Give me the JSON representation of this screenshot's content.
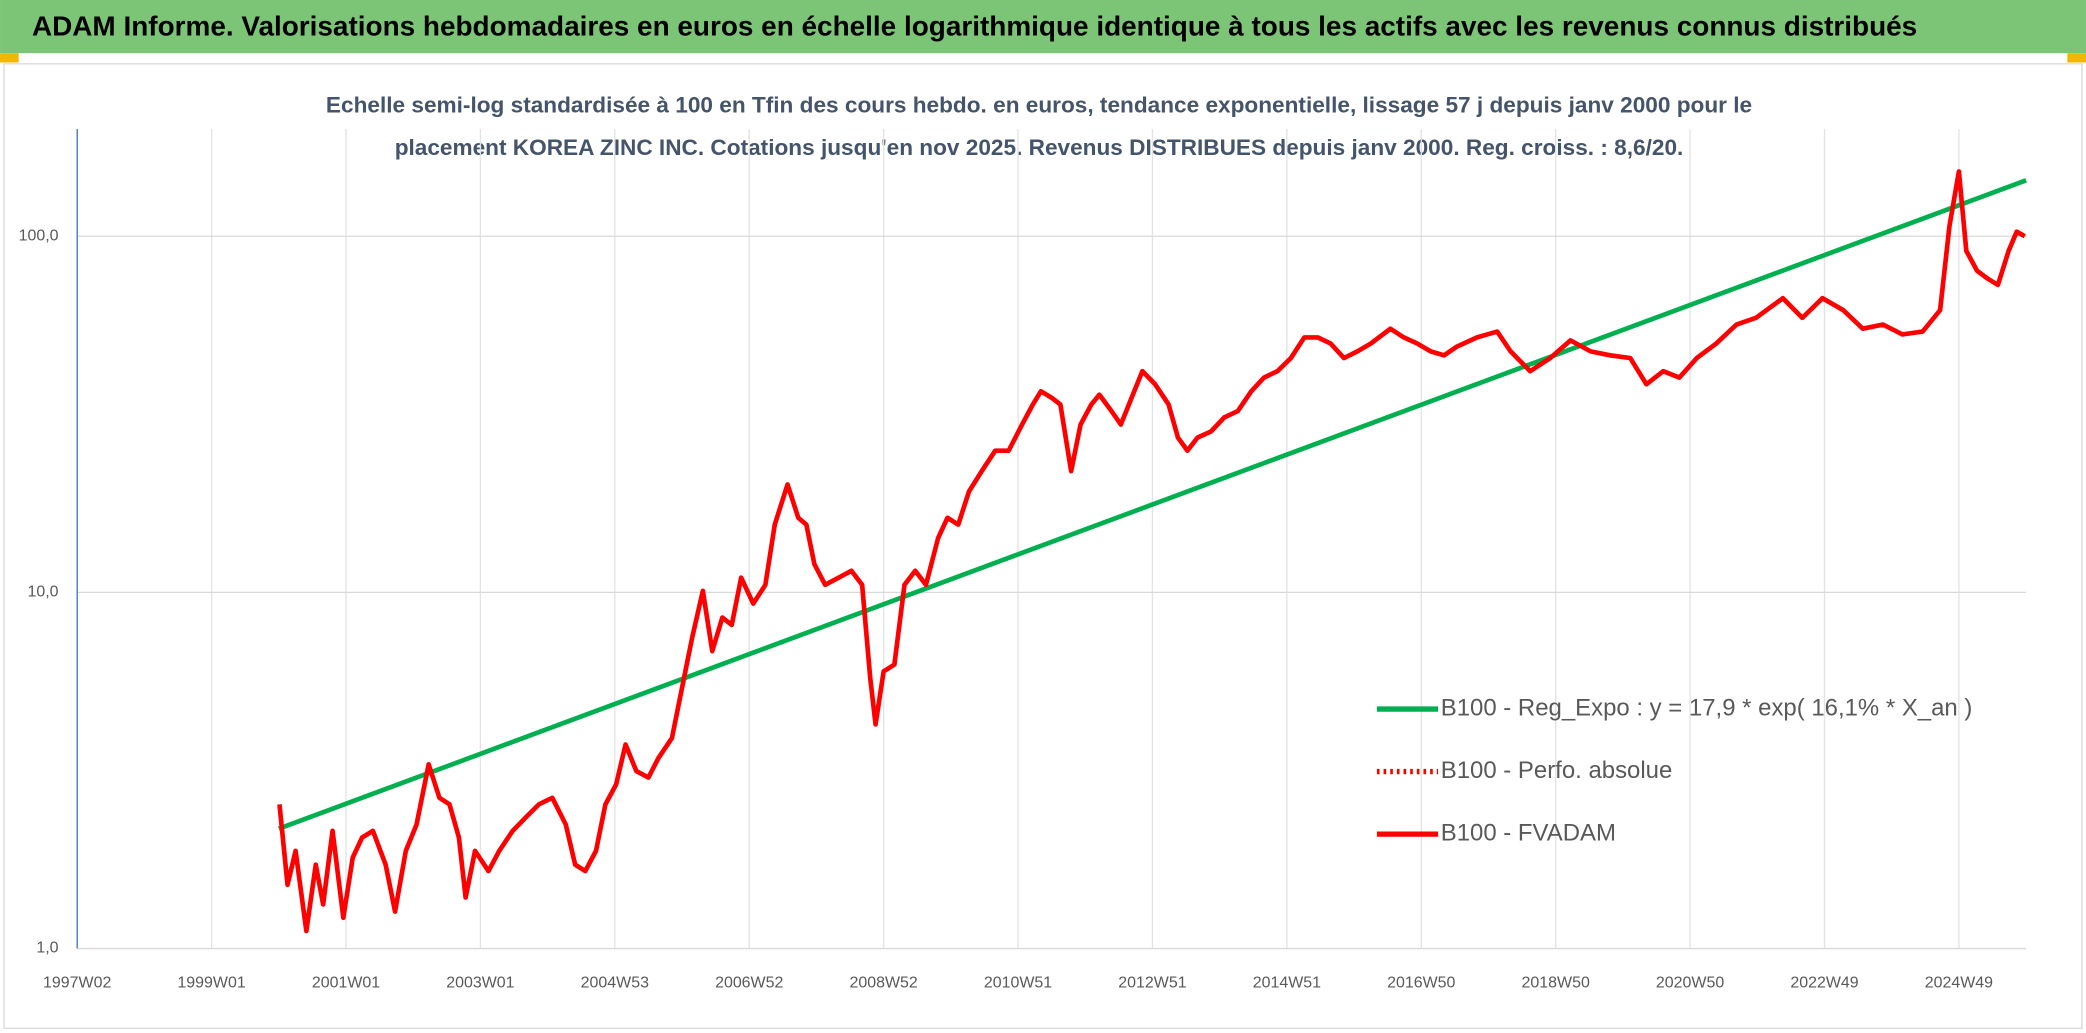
{
  "chart_data": {
    "type": "line",
    "title": "ADAM Informe. Valorisations hebdomadaires en euros en échelle logarithmique identique à tous les actifs avec les revenus connus distribués",
    "subtitle": [
      "Echelle semi-log standardisée à 100 en Tfin des cours hebdo. en euros, tendance exponentielle, lissage 57 j depuis janv 2000 pour le",
      "placement KOREA ZINC INC. Cotations jusqu'en nov 2025. Revenus DISTRIBUES depuis janv 2000. Reg. croiss. : 8,6/20."
    ],
    "ylog": true,
    "grid": true,
    "legend": "right",
    "xlim": [
      1997.0,
      2026.0
    ],
    "xticks": [
      {
        "value": 1997,
        "label": "1997W02"
      },
      {
        "value": 1999,
        "label": "1999W01"
      },
      {
        "value": 2001,
        "label": "2001W01"
      },
      {
        "value": 2003,
        "label": "2003W01"
      },
      {
        "value": 2005,
        "label": "2004W53"
      },
      {
        "value": 2007,
        "label": "2006W52"
      },
      {
        "value": 2009,
        "label": "2008W52"
      },
      {
        "value": 2011,
        "label": "2010W51"
      },
      {
        "value": 2013,
        "label": "2012W51"
      },
      {
        "value": 2015,
        "label": "2014W51"
      },
      {
        "value": 2017,
        "label": "2016W50"
      },
      {
        "value": 2019,
        "label": "2018W50"
      },
      {
        "value": 2021,
        "label": "2020W50"
      },
      {
        "value": 2023,
        "label": "2022W49"
      },
      {
        "value": 2025,
        "label": "2024W49"
      }
    ],
    "ylim": [
      1,
      200
    ],
    "yticks": [
      {
        "value": 1,
        "label": "1,0"
      },
      {
        "value": 10,
        "label": "10,0"
      },
      {
        "value": 100,
        "label": "100,0"
      }
    ],
    "series": [
      {
        "name": "B100 - Reg_Expo : y = 17,9 * exp( 16,1% *  X_an )",
        "color": "#00b050",
        "dash": "solid",
        "x": [
          2000.0,
          2026.0
        ],
        "values": [
          2.17,
          143.6
        ]
      },
      {
        "name": "B100 - Perfo. absolue",
        "color": "#ff0000",
        "dash": "dotted"
      },
      {
        "name": "B100 - FVADAM",
        "color": "#ff0000",
        "dash": "solid",
        "x": [
          2000.01,
          2000.13,
          2000.25,
          2000.41,
          2000.55,
          2000.66,
          2000.8,
          2000.96,
          2001.1,
          2001.24,
          2001.4,
          2001.59,
          2001.73,
          2001.89,
          2002.05,
          2002.23,
          2002.39,
          2002.54,
          2002.68,
          2002.78,
          2002.92,
          2003.12,
          2003.28,
          2003.48,
          2003.67,
          2003.87,
          2004.07,
          2004.27,
          2004.41,
          2004.56,
          2004.72,
          2004.86,
          2005.02,
          2005.16,
          2005.32,
          2005.5,
          2005.65,
          2005.85,
          2005.99,
          2006.15,
          2006.31,
          2006.45,
          2006.6,
          2006.74,
          2006.88,
          2007.06,
          2007.24,
          2007.38,
          2007.57,
          2007.73,
          2007.85,
          2007.97,
          2008.13,
          2008.33,
          2008.52,
          2008.68,
          2008.8,
          2008.88,
          2009.0,
          2009.16,
          2009.31,
          2009.47,
          2009.63,
          2009.81,
          2009.95,
          2010.11,
          2010.27,
          2010.46,
          2010.66,
          2010.86,
          2011.06,
          2011.22,
          2011.34,
          2011.5,
          2011.63,
          2011.79,
          2011.93,
          2012.09,
          2012.21,
          2012.39,
          2012.53,
          2012.69,
          2012.85,
          2013.04,
          2013.24,
          2013.38,
          2013.52,
          2013.67,
          2013.87,
          2014.07,
          2014.27,
          2014.47,
          2014.66,
          2014.86,
          2015.06,
          2015.26,
          2015.46,
          2015.65,
          2015.85,
          2016.05,
          2016.25,
          2016.54,
          2016.74,
          2016.94,
          2017.14,
          2017.34,
          2017.53,
          2017.83,
          2018.13,
          2018.33,
          2018.62,
          2018.92,
          2019.22,
          2019.52,
          2019.81,
          2020.11,
          2020.35,
          2020.6,
          2020.84,
          2021.1,
          2021.39,
          2021.69,
          2021.98,
          2022.38,
          2022.67,
          2022.97,
          2023.28,
          2023.57,
          2023.87,
          2024.16,
          2024.46,
          2024.72,
          2024.86,
          2025.0,
          2025.11,
          2025.27,
          2025.43,
          2025.58,
          2025.74,
          2025.86,
          2025.98
        ],
        "values": [
          2.54,
          1.51,
          1.88,
          1.12,
          1.72,
          1.33,
          2.14,
          1.22,
          1.8,
          2.05,
          2.14,
          1.72,
          1.27,
          1.88,
          2.23,
          3.29,
          2.65,
          2.54,
          2.05,
          1.39,
          1.88,
          1.65,
          1.88,
          2.14,
          2.33,
          2.54,
          2.65,
          2.23,
          1.72,
          1.65,
          1.88,
          2.54,
          2.89,
          3.74,
          3.15,
          3.02,
          3.43,
          3.9,
          5.28,
          7.45,
          10.1,
          6.84,
          8.5,
          8.1,
          11.0,
          9.3,
          10.5,
          15.5,
          20.1,
          16.2,
          15.5,
          12.0,
          10.5,
          11.0,
          11.5,
          10.5,
          5.76,
          4.26,
          6.0,
          6.27,
          10.5,
          11.5,
          10.5,
          14.2,
          16.2,
          15.5,
          19.2,
          21.9,
          25.0,
          25.0,
          29.6,
          33.7,
          36.7,
          35.2,
          33.7,
          21.9,
          29.6,
          33.7,
          35.9,
          32.3,
          29.6,
          35.2,
          41.8,
          38.4,
          33.7,
          27.2,
          25.0,
          27.2,
          28.3,
          31.0,
          32.3,
          36.7,
          40.1,
          41.8,
          45.5,
          52,
          52,
          50,
          45.5,
          47.5,
          50,
          55,
          52,
          50,
          47.5,
          46.3,
          49,
          52,
          54,
          47.5,
          41.8,
          45.5,
          51,
          47.5,
          46.3,
          45.5,
          38.4,
          41.8,
          40.1,
          45.5,
          50,
          56.5,
          59,
          67,
          59,
          67,
          62,
          55,
          56.5,
          53,
          54,
          62,
          107,
          152,
          91,
          80,
          76,
          73,
          91,
          103,
          100
        ]
      }
    ]
  }
}
